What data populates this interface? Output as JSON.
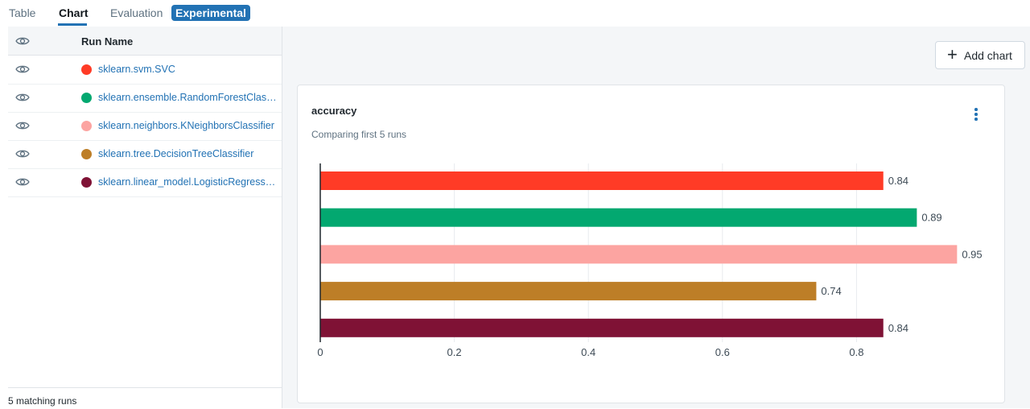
{
  "tabs": [
    {
      "label": "Table",
      "active": false
    },
    {
      "label": "Chart",
      "active": true
    },
    {
      "label": "Evaluation",
      "active": false
    },
    {
      "label": "Experimental",
      "active": false
    }
  ],
  "sidebar": {
    "header_label": "Run Name",
    "runs": [
      {
        "name": "sklearn.svm.SVC",
        "color": "#ff3b26"
      },
      {
        "name": "sklearn.ensemble.RandomForestClassifier",
        "color": "#03a870"
      },
      {
        "name": "sklearn.neighbors.KNeighborsClassifier",
        "color": "#fca4a1"
      },
      {
        "name": "sklearn.tree.DecisionTreeClassifier",
        "color": "#bd7e27"
      },
      {
        "name": "sklearn.linear_model.LogisticRegression",
        "color": "#7f1235"
      }
    ],
    "footer": "5 matching runs"
  },
  "toolbar": {
    "add_chart_label": "Add chart"
  },
  "card": {
    "title": "accuracy",
    "subtitle": "Comparing first 5 runs"
  },
  "chart_data": {
    "type": "bar",
    "orientation": "horizontal",
    "categories": [
      "sklearn.svm.SVC",
      "sklearn.ensemble.RandomForestClassifier",
      "sklearn.neighbors.KNeighborsClassifier",
      "sklearn.tree.DecisionTreeClassifier",
      "sklearn.linear_model.LogisticRegression"
    ],
    "values": [
      0.84,
      0.89,
      0.95,
      0.74,
      0.84
    ],
    "value_labels": [
      "0.84",
      "0.89",
      "0.95",
      "0.74",
      "0.84"
    ],
    "colors": [
      "#ff3b26",
      "#03a870",
      "#fca4a1",
      "#bd7e27",
      "#7f1235"
    ],
    "xticks": [
      0,
      0.2,
      0.4,
      0.6,
      0.8
    ],
    "xtick_labels": [
      "0",
      "0.2",
      "0.4",
      "0.6",
      "0.8"
    ],
    "xlim": [
      0,
      1
    ],
    "grid": true,
    "legend": "none"
  }
}
